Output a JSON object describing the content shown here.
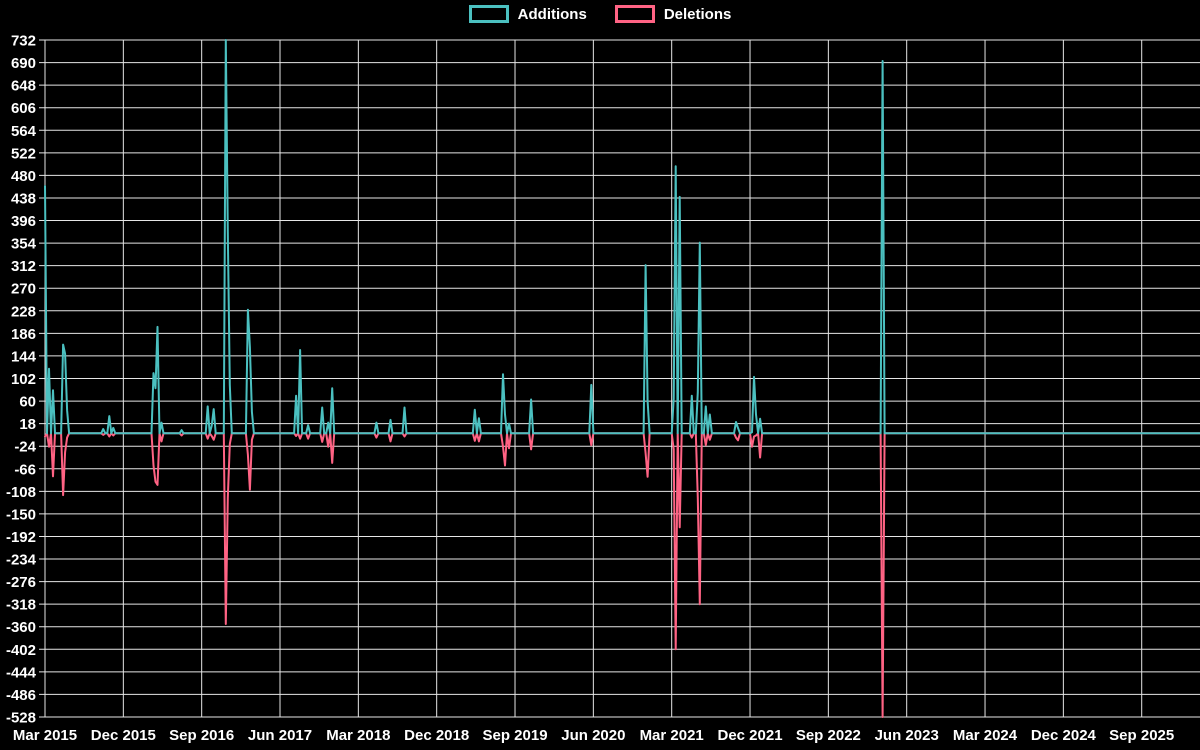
{
  "legend": {
    "additions_label": "Additions",
    "deletions_label": "Deletions"
  },
  "colors": {
    "background": "#000000",
    "grid": "#e6e6e6",
    "axis_text": "#ffffff",
    "additions": "#4BC0C0",
    "deletions": "#FF6384"
  },
  "chart_data": {
    "type": "line",
    "title": "",
    "xlabel": "",
    "ylabel": "",
    "grid": true,
    "legend_position": "top",
    "x_tick_labels": [
      "Mar 2015",
      "Dec 2015",
      "Sep 2016",
      "Jun 2017",
      "Mar 2018",
      "Dec 2018",
      "Sep 2019",
      "Jun 2020",
      "Mar 2021",
      "Dec 2021",
      "Sep 2022",
      "Jun 2023",
      "Mar 2024",
      "Dec 2024",
      "Sep 2025"
    ],
    "x_unit": "weeks since Mar 2015; 39 weeks between consecutive x tick labels",
    "y_axis": {
      "min": -528,
      "max": 732,
      "tick_step": 42
    },
    "baseline_value": 0,
    "weeks_total": 577,
    "series": [
      {
        "name": "Additions",
        "color": "#4BC0C0",
        "default_value": 0,
        "events": [
          [
            0,
            460
          ],
          [
            2,
            120
          ],
          [
            4,
            80
          ],
          [
            9,
            165
          ],
          [
            10,
            148
          ],
          [
            11,
            43
          ],
          [
            29,
            8
          ],
          [
            32,
            32
          ],
          [
            34,
            10
          ],
          [
            54,
            112
          ],
          [
            55,
            84
          ],
          [
            56,
            198
          ],
          [
            58,
            20
          ],
          [
            68,
            6
          ],
          [
            81,
            50
          ],
          [
            83,
            14
          ],
          [
            84,
            45
          ],
          [
            90,
            732
          ],
          [
            91,
            375
          ],
          [
            92,
            90
          ],
          [
            101,
            230
          ],
          [
            102,
            160
          ],
          [
            103,
            40
          ],
          [
            125,
            70
          ],
          [
            127,
            155
          ],
          [
            131,
            15
          ],
          [
            138,
            48
          ],
          [
            141,
            20
          ],
          [
            143,
            84
          ],
          [
            165,
            20
          ],
          [
            172,
            25
          ],
          [
            179,
            48
          ],
          [
            214,
            44
          ],
          [
            216,
            28
          ],
          [
            228,
            110
          ],
          [
            229,
            35
          ],
          [
            231,
            18
          ],
          [
            242,
            63
          ],
          [
            272,
            90
          ],
          [
            299,
            313
          ],
          [
            300,
            60
          ],
          [
            313,
            65
          ],
          [
            314,
            497
          ],
          [
            316,
            440
          ],
          [
            322,
            70
          ],
          [
            325,
            77
          ],
          [
            326,
            355
          ],
          [
            329,
            50
          ],
          [
            331,
            35
          ],
          [
            344,
            21
          ],
          [
            345,
            10
          ],
          [
            352,
            2
          ],
          [
            353,
            105
          ],
          [
            354,
            35
          ],
          [
            356,
            27
          ],
          [
            417,
            693
          ]
        ]
      },
      {
        "name": "Deletions",
        "color": "#FF6384",
        "default_value": 0,
        "events": [
          [
            0,
            -6
          ],
          [
            2,
            -25
          ],
          [
            4,
            -80
          ],
          [
            9,
            -115
          ],
          [
            10,
            -35
          ],
          [
            11,
            -8
          ],
          [
            29,
            -3
          ],
          [
            32,
            -6
          ],
          [
            34,
            -4
          ],
          [
            54,
            -60
          ],
          [
            55,
            -90
          ],
          [
            56,
            -96
          ],
          [
            58,
            -15
          ],
          [
            68,
            -4
          ],
          [
            81,
            -10
          ],
          [
            83,
            -5
          ],
          [
            84,
            -12
          ],
          [
            90,
            -355
          ],
          [
            91,
            -120
          ],
          [
            92,
            -20
          ],
          [
            101,
            -40
          ],
          [
            102,
            -105
          ],
          [
            103,
            -12
          ],
          [
            125,
            -5
          ],
          [
            127,
            -10
          ],
          [
            131,
            -10
          ],
          [
            138,
            -16
          ],
          [
            141,
            -25
          ],
          [
            143,
            -55
          ],
          [
            165,
            -8
          ],
          [
            172,
            -15
          ],
          [
            179,
            -6
          ],
          [
            214,
            -14
          ],
          [
            216,
            -15
          ],
          [
            228,
            -25
          ],
          [
            229,
            -60
          ],
          [
            231,
            -28
          ],
          [
            242,
            -30
          ],
          [
            272,
            -22
          ],
          [
            299,
            -37
          ],
          [
            300,
            -81
          ],
          [
            313,
            -30
          ],
          [
            314,
            -402
          ],
          [
            316,
            -175
          ],
          [
            322,
            -8
          ],
          [
            325,
            -120
          ],
          [
            326,
            -318
          ],
          [
            329,
            -22
          ],
          [
            331,
            -12
          ],
          [
            344,
            -8
          ],
          [
            345,
            -13
          ],
          [
            352,
            -25
          ],
          [
            353,
            -6
          ],
          [
            354,
            -4
          ],
          [
            356,
            -45
          ],
          [
            417,
            -528
          ]
        ]
      }
    ]
  }
}
